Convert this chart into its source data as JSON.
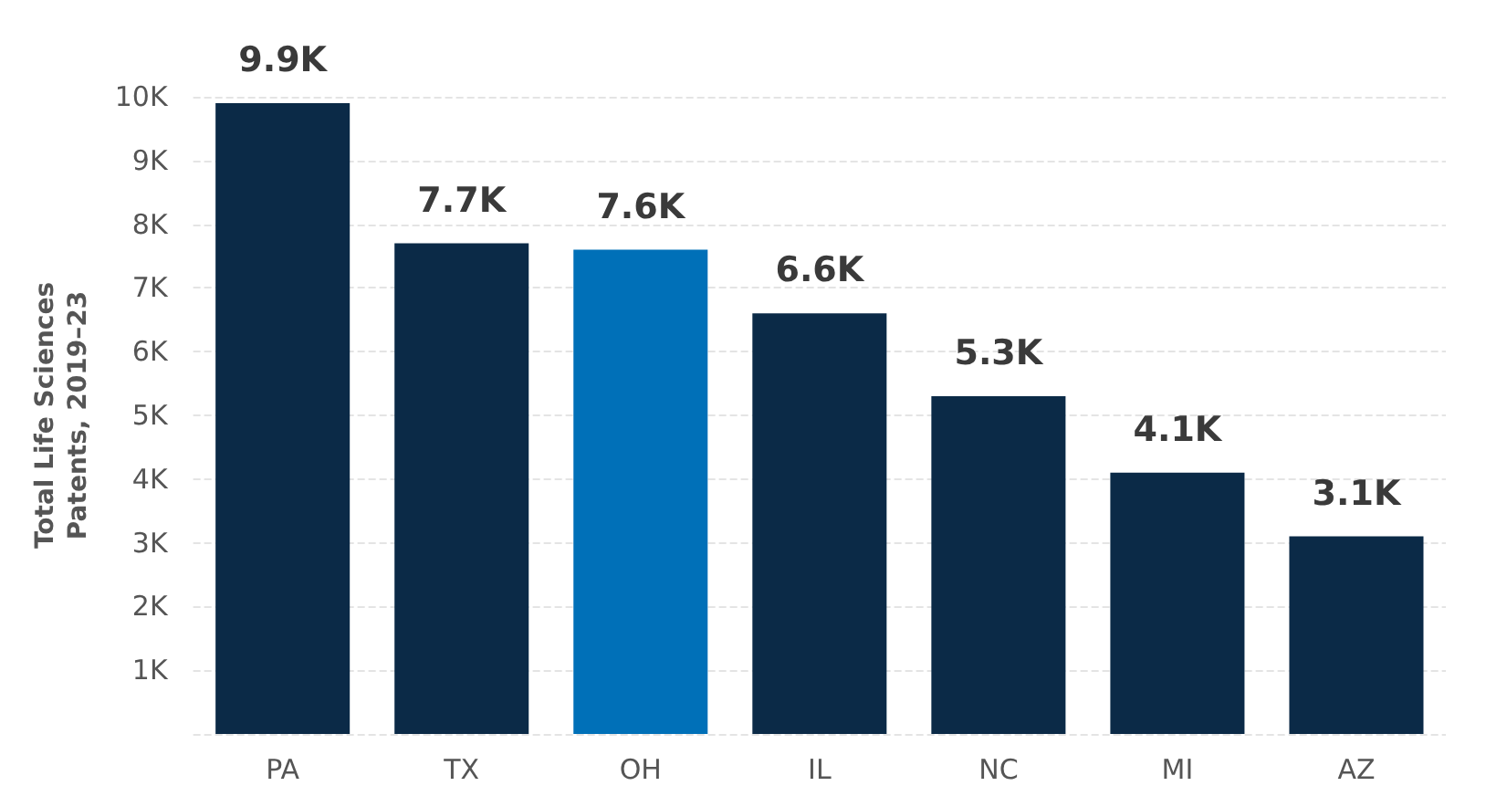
{
  "chart_data": {
    "type": "bar",
    "ylabel": "Total Life Sciences\nPatents, 2019–23",
    "categories": [
      "PA",
      "TX",
      "OH",
      "IL",
      "NC",
      "MI",
      "AZ"
    ],
    "values": [
      9900,
      7700,
      7600,
      6600,
      5300,
      4100,
      3100
    ],
    "value_labels": [
      "9.9K",
      "7.7K",
      "7.6K",
      "6.6K",
      "5.3K",
      "4.1K",
      "3.1K"
    ],
    "colors": [
      "#0b2a47",
      "#0b2a47",
      "#0070b8",
      "#0b2a47",
      "#0b2a47",
      "#0b2a47",
      "#0b2a47"
    ],
    "ylim": [
      0,
      10000
    ],
    "yticks": [
      {
        "value": 0,
        "label": null
      },
      {
        "value": 1000,
        "label": "1K"
      },
      {
        "value": 2000,
        "label": "2K"
      },
      {
        "value": 3000,
        "label": "3K"
      },
      {
        "value": 4000,
        "label": "4K"
      },
      {
        "value": 5000,
        "label": "5K"
      },
      {
        "value": 6000,
        "label": "6K"
      },
      {
        "value": 7000,
        "label": "7K"
      },
      {
        "value": 8000,
        "label": "8K"
      },
      {
        "value": 9000,
        "label": "9K"
      },
      {
        "value": 10000,
        "label": "10K"
      }
    ],
    "grid": "y"
  }
}
